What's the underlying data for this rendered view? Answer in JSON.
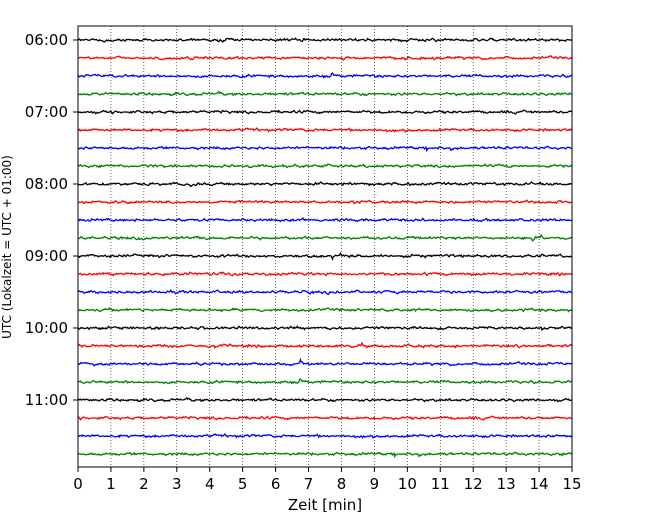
{
  "chart_data": {
    "type": "line",
    "title": "",
    "xlabel": "Zeit  [min]",
    "ylabel": "UTC (Lokalzeit = UTC + 01:00)",
    "xlim": [
      0,
      15
    ],
    "x_ticks": [
      "0",
      "1",
      "2",
      "3",
      "4",
      "5",
      "6",
      "7",
      "8",
      "9",
      "10",
      "11",
      "12",
      "13",
      "14",
      "15"
    ],
    "y_tick_labels": [
      "06:00",
      "07:00",
      "08:00",
      "09:00",
      "10:00",
      "11:00"
    ],
    "grid": "vertical dotted lines at each minute",
    "legend": "none",
    "trace_colors": [
      "#000000",
      "#ff0000",
      "#0000ff",
      "#008000"
    ],
    "trace_start_times": [
      "06:00",
      "06:15",
      "06:30",
      "06:45",
      "07:00",
      "07:15",
      "07:30",
      "07:45",
      "08:00",
      "08:15",
      "08:30",
      "08:45",
      "09:00",
      "09:15",
      "09:30",
      "09:45",
      "10:00",
      "10:15",
      "10:30",
      "10:45",
      "11:00",
      "11:15",
      "11:30",
      "11:45"
    ]
  }
}
